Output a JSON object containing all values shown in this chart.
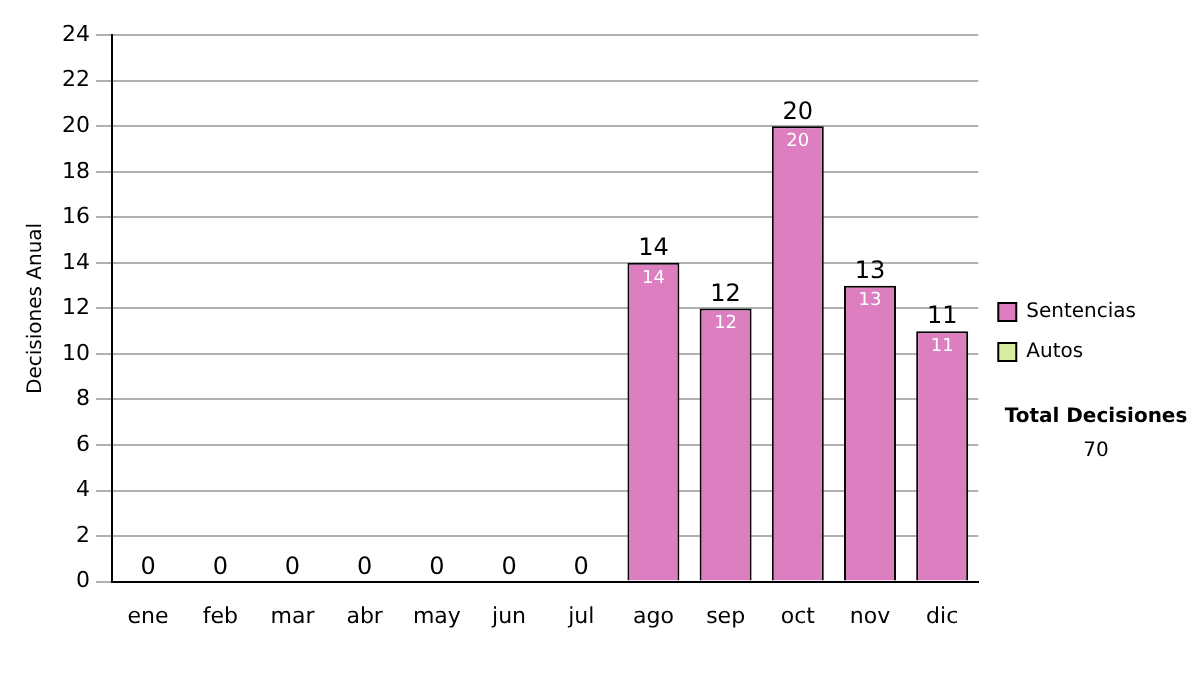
{
  "chart_data": {
    "type": "bar",
    "ylabel": "Decisiones Anual",
    "categories": [
      "ene",
      "feb",
      "mar",
      "abr",
      "may",
      "jun",
      "jul",
      "ago",
      "sep",
      "oct",
      "nov",
      "dic"
    ],
    "series": [
      {
        "name": "Sentencias",
        "color": "#dc7ec0",
        "values": [
          0,
          0,
          0,
          0,
          0,
          0,
          0,
          14,
          12,
          20,
          13,
          11
        ],
        "value_labels": [
          null,
          null,
          null,
          null,
          null,
          null,
          null,
          "14",
          "12",
          "20",
          "13",
          "11"
        ]
      },
      {
        "name": "Autos",
        "color": "#d6ec9e",
        "values": [
          0,
          0,
          0,
          0,
          0,
          0,
          0,
          0,
          0,
          0,
          0,
          0
        ]
      }
    ],
    "stacked": true,
    "totals": [
      "0",
      "0",
      "0",
      "0",
      "0",
      "0",
      "0",
      "14",
      "12",
      "20",
      "13",
      "11"
    ],
    "ylim": [
      0,
      24
    ],
    "yticks": [
      0,
      2,
      4,
      6,
      8,
      10,
      12,
      14,
      16,
      18,
      20,
      22,
      24
    ],
    "grid": "y",
    "legend": "right",
    "annotations": [
      "Total Decisiones",
      "70"
    ]
  }
}
